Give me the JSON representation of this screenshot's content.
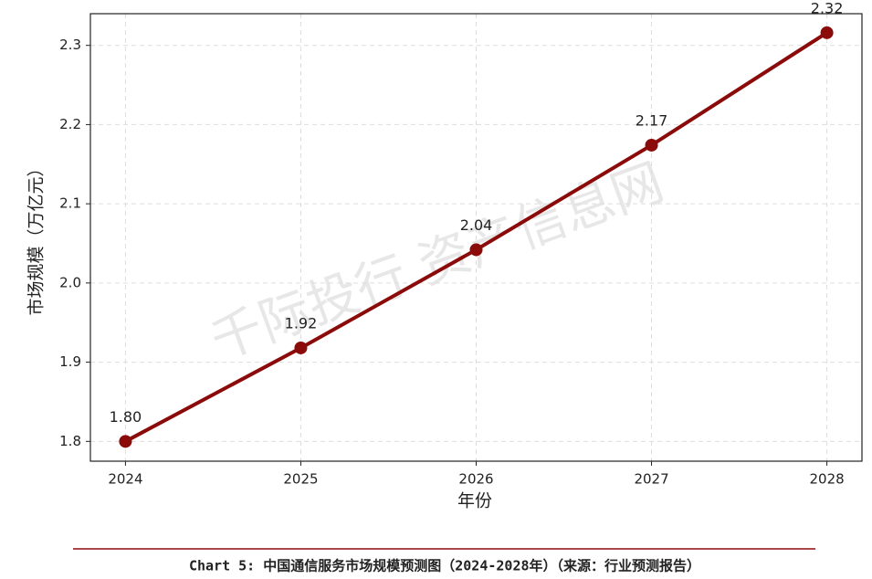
{
  "chart_data": {
    "type": "line",
    "x": [
      2024,
      2025,
      2026,
      2027,
      2028
    ],
    "values": [
      1.8,
      1.918,
      2.042,
      2.174,
      2.316
    ],
    "value_labels": [
      "1.80",
      "1.92",
      "2.04",
      "2.17",
      "2.32"
    ],
    "color": "#8b0a0a",
    "xlim": [
      2023.8,
      2028.2
    ],
    "xticks": [
      2024,
      2025,
      2026,
      2027,
      2028
    ],
    "ylim": [
      1.775,
      2.34
    ],
    "yticks": [
      1.8,
      1.9,
      {
        "value": 2,
        "label": "2.0"
      },
      2.1,
      2.2,
      2.3
    ],
    "grid": true,
    "xlabel": "年份",
    "ylabel": "市场规模（万亿元）",
    "watermark": "千际投行 资产信息网",
    "caption": "Chart 5: 中国通信服务市场规模预测图（2024-2028年）（来源：行业预测报告）"
  }
}
